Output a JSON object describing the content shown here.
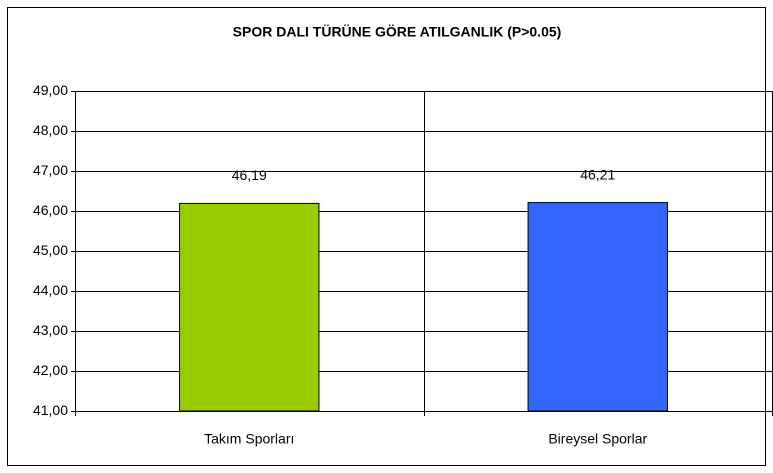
{
  "chart_data": {
    "type": "bar",
    "title": "SPOR DALI TÜRÜNE GÖRE ATILGANLIK (P>0.05)",
    "categories": [
      "Takım Sporları",
      "Bireysel Sporlar"
    ],
    "values": [
      46.19,
      46.21
    ],
    "value_labels": [
      "46,19",
      "46,21"
    ],
    "colors": [
      "#99cc00",
      "#3366ff"
    ],
    "ylim": [
      41,
      49
    ],
    "yticks": [
      {
        "value": 41,
        "label": "41,00"
      },
      {
        "value": 42,
        "label": "42,00"
      },
      {
        "value": 43,
        "label": "43,00"
      },
      {
        "value": 44,
        "label": "44,00"
      },
      {
        "value": 45,
        "label": "45,00"
      },
      {
        "value": 46,
        "label": "46,00"
      },
      {
        "value": 47,
        "label": "47,00"
      },
      {
        "value": 48,
        "label": "48,00"
      },
      {
        "value": 49,
        "label": "49,00"
      }
    ],
    "grid": true
  }
}
